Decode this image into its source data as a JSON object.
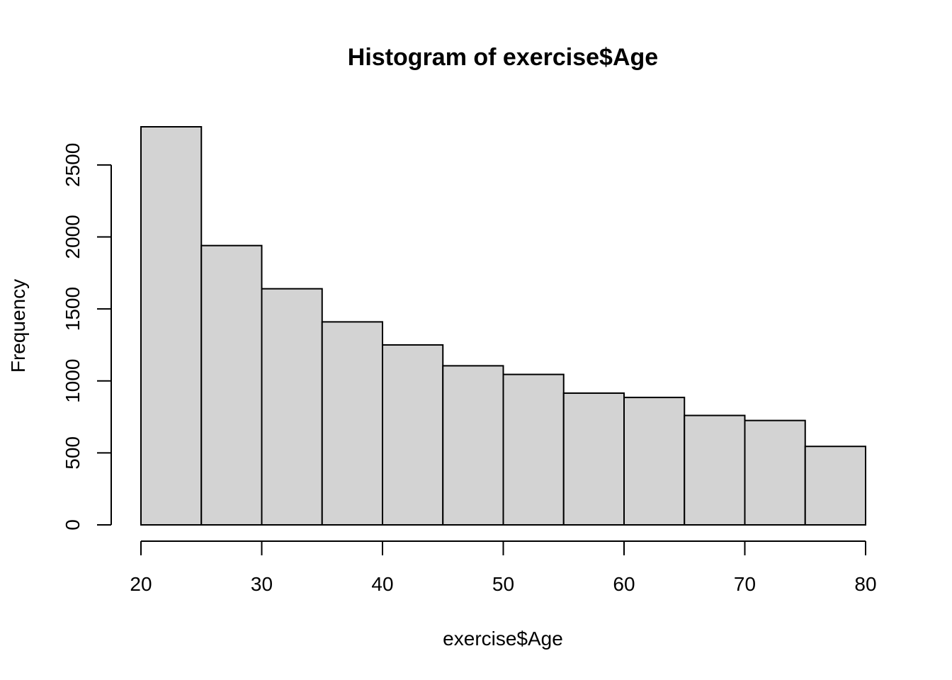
{
  "chart_data": {
    "type": "bar",
    "title": "Histogram of exercise$Age",
    "xlabel": "exercise$Age",
    "ylabel": "Frequency",
    "bins": [
      {
        "start": 20,
        "end": 25,
        "count": 2765
      },
      {
        "start": 25,
        "end": 30,
        "count": 1940
      },
      {
        "start": 30,
        "end": 35,
        "count": 1640
      },
      {
        "start": 35,
        "end": 40,
        "count": 1410
      },
      {
        "start": 40,
        "end": 45,
        "count": 1250
      },
      {
        "start": 45,
        "end": 50,
        "count": 1105
      },
      {
        "start": 50,
        "end": 55,
        "count": 1045
      },
      {
        "start": 55,
        "end": 60,
        "count": 915
      },
      {
        "start": 60,
        "end": 65,
        "count": 885
      },
      {
        "start": 65,
        "end": 70,
        "count": 760
      },
      {
        "start": 70,
        "end": 75,
        "count": 725
      },
      {
        "start": 75,
        "end": 80,
        "count": 545
      }
    ],
    "xlim": [
      20,
      80
    ],
    "ylim": [
      0,
      2765
    ],
    "x_ticks": [
      20,
      30,
      40,
      50,
      60,
      70,
      80
    ],
    "x_tick_labels": [
      "20",
      "30",
      "40",
      "50",
      "60",
      "70",
      "80"
    ],
    "y_ticks": [
      0,
      500,
      1000,
      1500,
      2000,
      2500
    ],
    "y_tick_labels": [
      "0",
      "500",
      "1000",
      "1500",
      "2000",
      "2500"
    ],
    "grid": false,
    "legend": "none",
    "bar_color": "#d3d3d3",
    "edge_color": "#000000"
  }
}
